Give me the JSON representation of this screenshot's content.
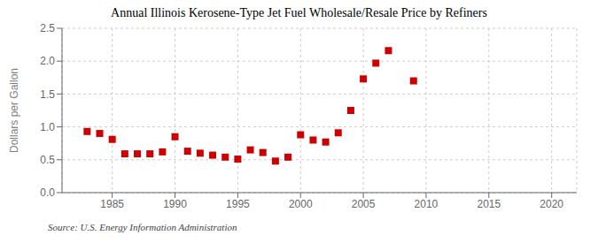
{
  "chart_data": {
    "type": "scatter",
    "title": "Annual Illinois Kerosene-Type Jet Fuel Wholesale/Resale Price by Refiners",
    "ylabel": "Dollars per Gallon",
    "annotations": [
      "Source: U.S. Energy Information Administration"
    ],
    "x": [
      1983,
      1984,
      1985,
      1986,
      1987,
      1988,
      1989,
      1990,
      1991,
      1992,
      1993,
      1994,
      1995,
      1996,
      1997,
      1998,
      1999,
      2000,
      2001,
      2002,
      2003,
      2004,
      2005,
      2006,
      2007,
      2009
    ],
    "values": [
      0.93,
      0.9,
      0.81,
      0.59,
      0.59,
      0.59,
      0.62,
      0.85,
      0.63,
      0.6,
      0.57,
      0.54,
      0.51,
      0.65,
      0.61,
      0.48,
      0.54,
      0.88,
      0.8,
      0.77,
      0.91,
      1.25,
      1.73,
      1.97,
      2.16,
      1.7
    ],
    "color": "#cc0000",
    "marker": "square",
    "xlim": [
      1981,
      2022
    ],
    "ylim": [
      0.0,
      2.5
    ],
    "xticks": [
      1985,
      1990,
      1995,
      2000,
      2005,
      2010,
      2015,
      2020
    ],
    "yticks": [
      {
        "value": 0,
        "label": "0.0"
      },
      0.5,
      {
        "value": 1,
        "label": "1.0"
      },
      1.5,
      {
        "value": 2,
        "label": "2.0"
      },
      2.5
    ],
    "grid": true
  }
}
